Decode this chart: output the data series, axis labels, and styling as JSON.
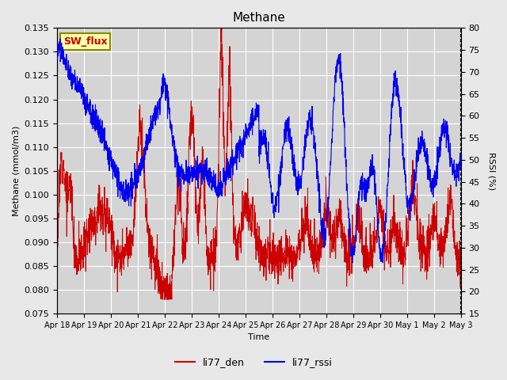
{
  "title": "Methane",
  "ylabel_left": "Methane (mmol/m3)",
  "ylabel_right": "RSSI (%)",
  "xlabel": "Time",
  "ylim_left": [
    0.075,
    0.135
  ],
  "ylim_right": [
    15,
    80
  ],
  "xtick_labels": [
    "Apr 18",
    "Apr 19",
    "Apr 20",
    "Apr 21",
    "Apr 22",
    "Apr 23",
    "Apr 24",
    "Apr 25",
    "Apr 26",
    "Apr 27",
    "Apr 28",
    "Apr 29",
    "Apr 30",
    "May 1",
    "May 2",
    "May 3"
  ],
  "line1_color": "#cc0000",
  "line2_color": "#0000ee",
  "legend_labels": [
    "li77_den",
    "li77_rssi"
  ],
  "watermark_text": "SW_flux",
  "watermark_bg": "#ffffaa",
  "watermark_border": "#888800",
  "fig_bg": "#e8e8e8",
  "plot_bg": "#d4d4d4",
  "grid_color": "#ffffff",
  "n_points": 2000
}
